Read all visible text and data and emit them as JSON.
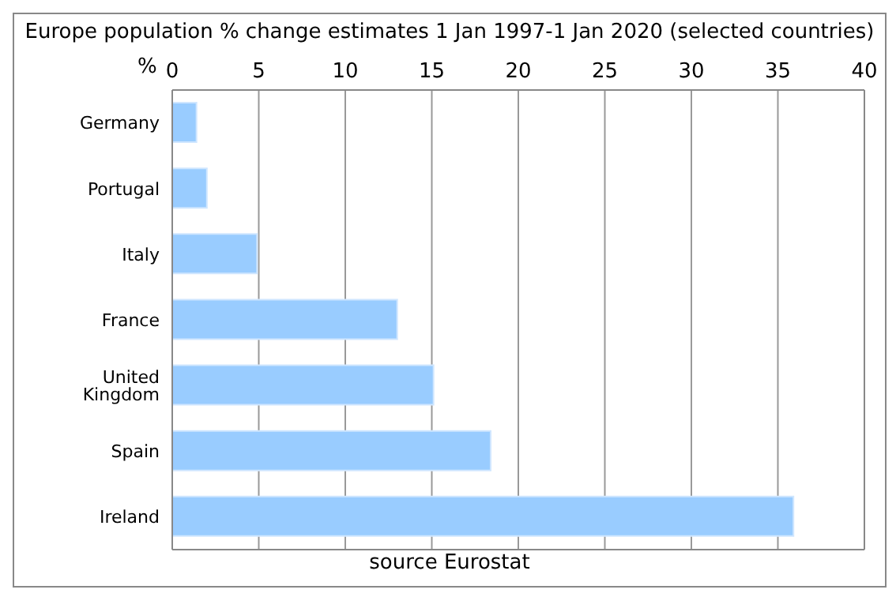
{
  "chart_data": {
    "type": "bar",
    "orientation": "horizontal",
    "title": "Europe population % change estimates 1 Jan 1997-1 Jan 2020  (selected countries)",
    "xlabel": "%",
    "categories": [
      "Germany",
      "Portugal",
      "Italy",
      "France",
      "United Kingdom",
      "Spain",
      "Ireland"
    ],
    "values": [
      1.4,
      2.0,
      4.9,
      13.0,
      15.1,
      18.4,
      35.9
    ],
    "color": "#99ccff",
    "xlim": [
      0,
      40
    ],
    "xticks": [
      0,
      5,
      10,
      15,
      20,
      25,
      30,
      35,
      40
    ],
    "grid": "x",
    "annotations": [
      "source Eurostat"
    ]
  }
}
